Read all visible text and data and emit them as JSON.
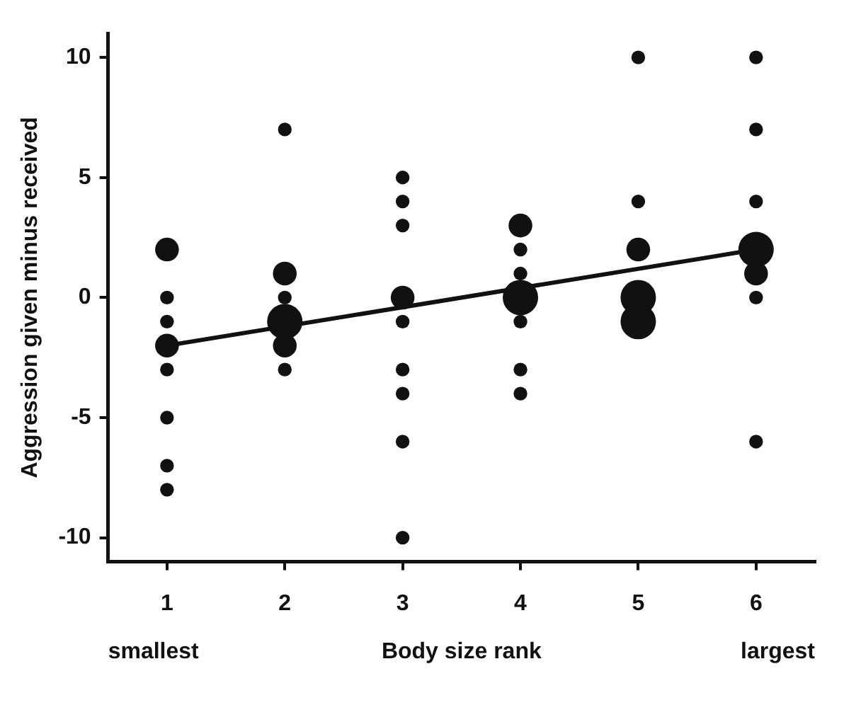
{
  "chart_data": {
    "type": "bubble",
    "xlabel": "Body size rank",
    "ylabel": "Aggression given minus received",
    "annotations": [
      "smallest",
      "largest"
    ],
    "xlim": [
      0.5,
      6.5
    ],
    "xticks": [
      1,
      2,
      3,
      4,
      5,
      6
    ],
    "ylim": [
      -11,
      11
    ],
    "yticks": [
      -10,
      -5,
      0,
      5,
      10
    ],
    "grid": false,
    "legend": false,
    "series": [
      {
        "color": "#111111",
        "x": [
          1,
          1,
          1,
          1,
          1,
          1,
          1,
          1,
          2,
          2,
          2,
          2,
          2,
          2,
          3,
          3,
          3,
          3,
          3,
          3,
          3,
          3,
          3,
          4,
          4,
          4,
          4,
          4,
          4,
          4,
          5,
          5,
          5,
          5,
          5,
          6,
          6,
          6,
          6,
          6,
          6,
          6
        ],
        "values": [
          2,
          0,
          -1,
          -2,
          -3,
          -5,
          -7,
          -8,
          7,
          1,
          0,
          -1,
          -2,
          -3,
          5,
          4,
          3,
          0,
          -1,
          -3,
          -4,
          -6,
          -10,
          3,
          2,
          1,
          0,
          -1,
          -3,
          -4,
          10,
          4,
          2,
          0,
          -1,
          10,
          7,
          4,
          2,
          1,
          0,
          -6
        ],
        "sizes": [
          0.45,
          0.15,
          0.15,
          0.45,
          0.15,
          0.15,
          0.15,
          0.15,
          0.15,
          0.45,
          0.15,
          1,
          0.45,
          0.15,
          0.15,
          0.15,
          0.15,
          0.45,
          0.15,
          0.15,
          0.15,
          0.15,
          0.15,
          0.45,
          0.15,
          0.15,
          1,
          0.15,
          0.15,
          0.15,
          0.15,
          0.15,
          0.45,
          1,
          1,
          0.15,
          0.15,
          0.15,
          1,
          0.45,
          0.15,
          0.15
        ]
      },
      {
        "type": "line",
        "color": "#111111",
        "x": [
          1,
          6
        ],
        "values": [
          -2,
          2
        ]
      }
    ]
  }
}
